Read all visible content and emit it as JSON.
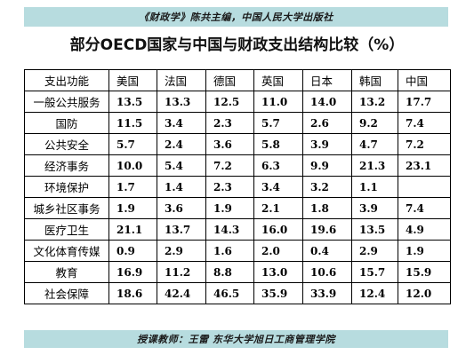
{
  "header_band": "《财政学》陈共主编，中国人民大学出版社",
  "title": "部分OECD国家与中国与财政支出结构比较（%）",
  "table": {
    "header": [
      "支出功能",
      "美国",
      "法国",
      "德国",
      "英国",
      "日本",
      "韩国",
      "中国"
    ],
    "rows": [
      {
        "label": "一般公共服务",
        "values": [
          "13.5",
          "13.3",
          "12.5",
          "11.0",
          "14.0",
          "13.2",
          "17.7"
        ]
      },
      {
        "label": "国防",
        "values": [
          "11.5",
          "3.4",
          "2.3",
          "5.7",
          "2.6",
          "9.2",
          "7.4"
        ]
      },
      {
        "label": "公共安全",
        "values": [
          "5.7",
          "2.4",
          "3.6",
          "5.8",
          "3.9",
          "4.7",
          "7.2"
        ]
      },
      {
        "label": "经济事务",
        "values": [
          "10.0",
          "5.4",
          "7.2",
          "6.3",
          "9.9",
          "21.3",
          "23.1"
        ]
      },
      {
        "label": "环境保护",
        "values": [
          "1.7",
          "1.4",
          "2.3",
          "3.4",
          "3.2",
          "1.1",
          ""
        ]
      },
      {
        "label": "城乡社区事务",
        "values": [
          "1.9",
          "3.6",
          "1.9",
          "2.1",
          "1.8",
          "3.9",
          "7.4"
        ]
      },
      {
        "label": "医疗卫生",
        "values": [
          "21.1",
          "13.7",
          "14.3",
          "16.0",
          "19.6",
          "13.5",
          "4.9"
        ]
      },
      {
        "label": "文化体育传媒",
        "values": [
          "0.9",
          "2.9",
          "1.6",
          "2.0",
          "0.4",
          "2.9",
          "1.9"
        ]
      },
      {
        "label": "教育",
        "values": [
          "16.9",
          "11.2",
          "8.8",
          "13.0",
          "10.6",
          "15.7",
          "15.9"
        ]
      },
      {
        "label": "社会保障",
        "values": [
          "18.6",
          "42.4",
          "46.5",
          "35.9",
          "33.9",
          "12.4",
          "12.0"
        ]
      }
    ]
  },
  "footer_band": "授课教师：王雷 东华大学旭日工商管理学院",
  "colors": {
    "band": "#b7dcdf",
    "text": "#000000",
    "border": "#000000"
  }
}
